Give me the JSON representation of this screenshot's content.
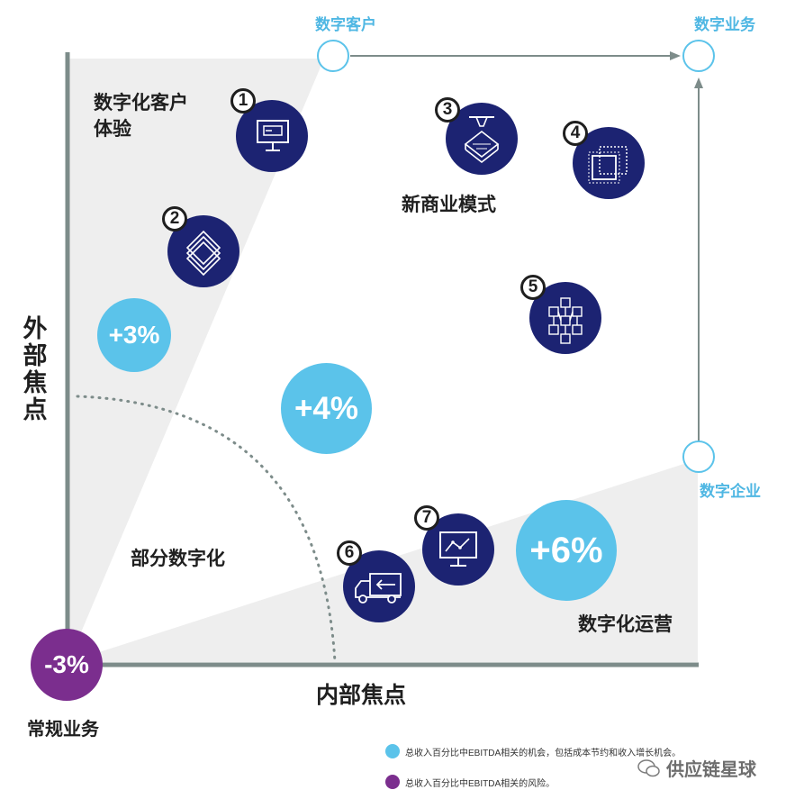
{
  "corners": {
    "top_left": "数字客户",
    "top_right": "数字业务",
    "bottom_right": "数字企业",
    "bottom_left": "常规业务"
  },
  "axes": {
    "y_label": "外部焦点",
    "x_label": "内部焦点"
  },
  "regions": {
    "digital_customer_experience": "数字化客户\n体验",
    "new_business_model": "新商业模式",
    "partial_digitization": "部分数字化",
    "digital_operations": "数字化运营"
  },
  "badges": [
    "1",
    "2",
    "3",
    "4",
    "5",
    "6",
    "7"
  ],
  "percent_bubbles": {
    "plus3": "+3%",
    "plus4": "+4%",
    "plus6": "+6%",
    "minus3": "-3%"
  },
  "legend": {
    "blue_text": "总收入百分比中EBITDA相关的机会，包括成本节约和收入增长机会。",
    "purple_text": "总收入百分比中EBITDA相关的风险。"
  },
  "watermark": "供应链星球",
  "colors": {
    "navy": "#1c2372",
    "light_blue": "#5bc3ea",
    "purple": "#7b2e8e",
    "axis_gray": "#7d8c8a",
    "region_gray": "#eeeeee"
  }
}
